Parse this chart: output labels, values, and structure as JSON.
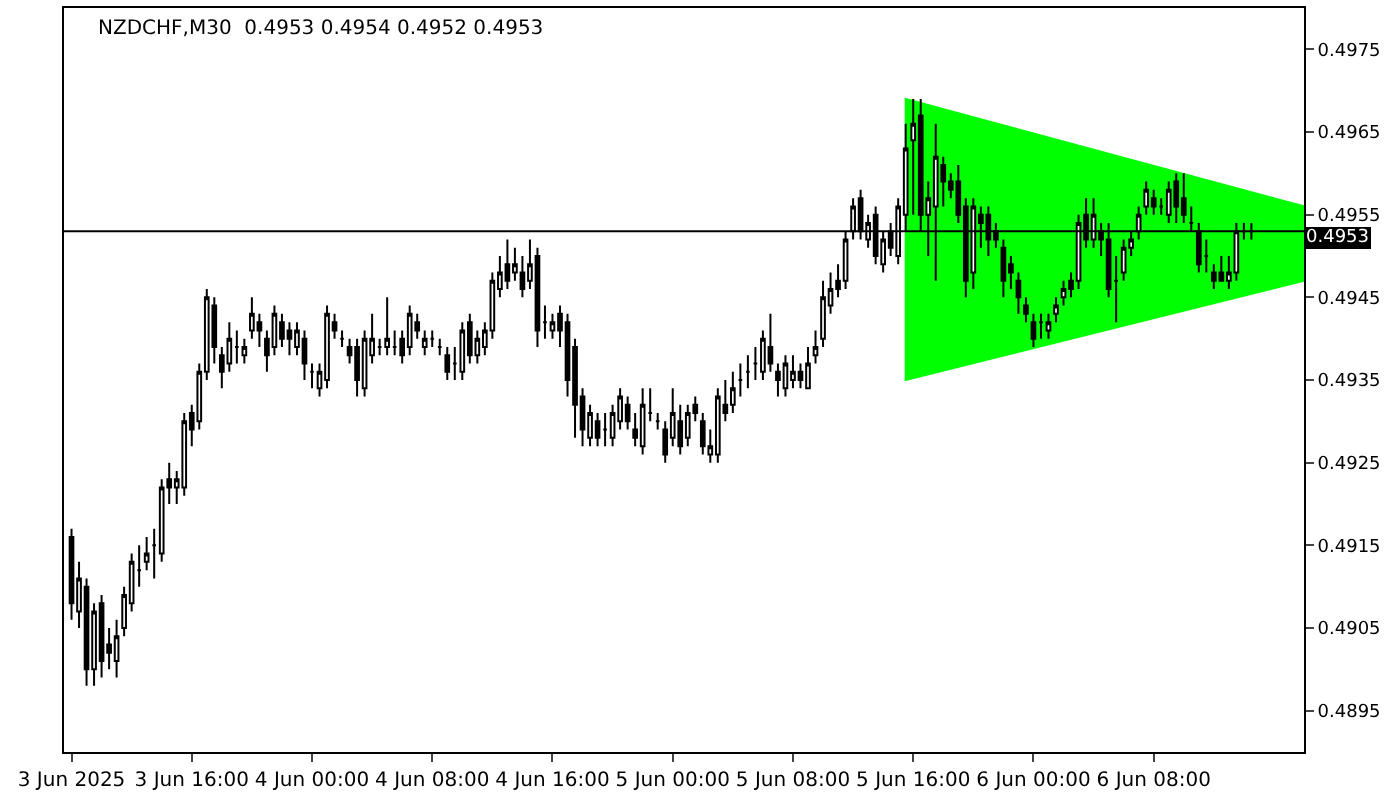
{
  "chart_data": {
    "type": "candlestick",
    "title": "NZDCHF,M30  0.4953 0.4954 0.4952 0.4953",
    "xlim": [
      "2025-06-03T07:30",
      "2025-06-06T18:00"
    ],
    "xticks": [
      {
        "value": "2025-06-03T08:00",
        "label": "3 Jun 2025"
      },
      {
        "value": "2025-06-03T16:00",
        "label": "3 Jun 16:00"
      },
      {
        "value": "2025-06-04T00:00",
        "label": "4 Jun 00:00"
      },
      {
        "value": "2025-06-04T08:00",
        "label": "4 Jun 08:00"
      },
      {
        "value": "2025-06-04T16:00",
        "label": "4 Jun 16:00"
      },
      {
        "value": "2025-06-05T00:00",
        "label": "5 Jun 00:00"
      },
      {
        "value": "2025-06-05T08:00",
        "label": "5 Jun 08:00"
      },
      {
        "value": "2025-06-05T16:00",
        "label": "5 Jun 16:00"
      },
      {
        "value": "2025-06-06T00:00",
        "label": "6 Jun 00:00"
      },
      {
        "value": "2025-06-06T08:00",
        "label": "6 Jun 08:00"
      }
    ],
    "ylim": [
      0.489,
      0.498
    ],
    "yticks": [
      0.4895,
      0.4905,
      0.4915,
      0.4925,
      0.4935,
      0.4945,
      0.4955,
      0.4965,
      0.4975
    ],
    "grid": false,
    "ref_lines": [
      {
        "axis": "y",
        "value": 0.4953,
        "label": "0.4953",
        "color": "#000000"
      }
    ],
    "series": [
      {
        "type": "area",
        "color": "#00ff00",
        "x": [
          "2025-06-05T15:30",
          "2025-06-06T18:00",
          "2025-06-06T18:00",
          "2025-06-05T15:30"
        ],
        "values": [
          0.4969,
          0.4956,
          0.4947,
          0.4935
        ]
      },
      {
        "color": "#000000",
        "x": [
          "2025-06-03T08:00",
          "2025-06-03T08:30",
          "2025-06-03T09:00",
          "2025-06-03T09:30",
          "2025-06-03T10:00",
          "2025-06-03T10:30",
          "2025-06-03T11:00",
          "2025-06-03T11:30",
          "2025-06-03T12:00",
          "2025-06-03T12:30",
          "2025-06-03T13:00",
          "2025-06-03T13:30",
          "2025-06-03T14:00",
          "2025-06-03T14:30",
          "2025-06-03T15:00",
          "2025-06-03T15:30",
          "2025-06-03T16:00",
          "2025-06-03T16:30",
          "2025-06-03T17:00",
          "2025-06-03T17:30",
          "2025-06-03T18:00",
          "2025-06-03T18:30",
          "2025-06-03T19:00",
          "2025-06-03T19:30",
          "2025-06-03T20:00",
          "2025-06-03T20:30",
          "2025-06-03T21:00",
          "2025-06-03T21:30",
          "2025-06-03T22:00",
          "2025-06-03T22:30",
          "2025-06-03T23:00",
          "2025-06-03T23:30",
          "2025-06-04T00:00",
          "2025-06-04T00:30",
          "2025-06-04T01:00",
          "2025-06-04T01:30",
          "2025-06-04T02:00",
          "2025-06-04T02:30",
          "2025-06-04T03:00",
          "2025-06-04T03:30",
          "2025-06-04T04:00",
          "2025-06-04T04:30",
          "2025-06-04T05:00",
          "2025-06-04T05:30",
          "2025-06-04T06:00",
          "2025-06-04T06:30",
          "2025-06-04T07:00",
          "2025-06-04T07:30",
          "2025-06-04T08:00",
          "2025-06-04T08:30",
          "2025-06-04T09:00",
          "2025-06-04T09:30",
          "2025-06-04T10:00",
          "2025-06-04T10:30",
          "2025-06-04T11:00",
          "2025-06-04T11:30",
          "2025-06-04T12:00",
          "2025-06-04T12:30",
          "2025-06-04T13:00",
          "2025-06-04T13:30",
          "2025-06-04T14:00",
          "2025-06-04T14:30",
          "2025-06-04T15:00",
          "2025-06-04T15:30",
          "2025-06-04T16:00",
          "2025-06-04T16:30",
          "2025-06-04T17:00",
          "2025-06-04T17:30",
          "2025-06-04T18:00",
          "2025-06-04T18:30",
          "2025-06-04T19:00",
          "2025-06-04T19:30",
          "2025-06-04T20:00",
          "2025-06-04T20:30",
          "2025-06-04T21:00",
          "2025-06-04T21:30",
          "2025-06-04T22:00",
          "2025-06-04T22:30",
          "2025-06-04T23:00",
          "2025-06-04T23:30",
          "2025-06-05T00:00",
          "2025-06-05T00:30",
          "2025-06-05T01:00",
          "2025-06-05T01:30",
          "2025-06-05T02:00",
          "2025-06-05T02:30",
          "2025-06-05T03:00",
          "2025-06-05T03:30",
          "2025-06-05T04:00",
          "2025-06-05T04:30",
          "2025-06-05T05:00",
          "2025-06-05T05:30",
          "2025-06-05T06:00",
          "2025-06-05T06:30",
          "2025-06-05T07:00",
          "2025-06-05T07:30",
          "2025-06-05T08:00",
          "2025-06-05T08:30",
          "2025-06-05T09:00",
          "2025-06-05T09:30",
          "2025-06-05T10:00",
          "2025-06-05T10:30",
          "2025-06-05T11:00",
          "2025-06-05T11:30",
          "2025-06-05T12:00",
          "2025-06-05T12:30",
          "2025-06-05T13:00",
          "2025-06-05T13:30",
          "2025-06-05T14:00",
          "2025-06-05T14:30",
          "2025-06-05T15:00",
          "2025-06-05T15:30",
          "2025-06-05T16:00",
          "2025-06-05T16:30",
          "2025-06-05T17:00",
          "2025-06-05T17:30",
          "2025-06-05T18:00",
          "2025-06-05T18:30",
          "2025-06-05T19:00",
          "2025-06-05T19:30",
          "2025-06-05T20:00",
          "2025-06-05T20:30",
          "2025-06-05T21:00",
          "2025-06-05T21:30",
          "2025-06-05T22:00",
          "2025-06-05T22:30",
          "2025-06-05T23:00",
          "2025-06-05T23:30",
          "2025-06-06T00:00",
          "2025-06-06T00:30",
          "2025-06-06T01:00",
          "2025-06-06T01:30",
          "2025-06-06T02:00",
          "2025-06-06T02:30",
          "2025-06-06T03:00",
          "2025-06-06T03:30",
          "2025-06-06T04:00",
          "2025-06-06T04:30",
          "2025-06-06T05:00",
          "2025-06-06T05:30",
          "2025-06-06T06:00",
          "2025-06-06T06:30",
          "2025-06-06T07:00",
          "2025-06-06T07:30",
          "2025-06-06T08:00",
          "2025-06-06T08:30",
          "2025-06-06T09:00",
          "2025-06-06T09:30",
          "2025-06-06T10:00",
          "2025-06-06T10:30",
          "2025-06-06T11:00",
          "2025-06-06T11:30",
          "2025-06-06T12:00",
          "2025-06-06T12:30",
          "2025-06-06T13:00",
          "2025-06-06T13:30",
          "2025-06-06T14:00",
          "2025-06-06T14:30"
        ],
        "ohlc": [
          [
            0.4916,
            0.4917,
            0.4906,
            0.4908
          ],
          [
            0.4907,
            0.4913,
            0.4905,
            0.4911
          ],
          [
            0.491,
            0.4911,
            0.4898,
            0.49
          ],
          [
            0.49,
            0.4908,
            0.4898,
            0.4907
          ],
          [
            0.4908,
            0.4909,
            0.4899,
            0.4901
          ],
          [
            0.4903,
            0.4905,
            0.49,
            0.4902
          ],
          [
            0.4901,
            0.4906,
            0.4899,
            0.4904
          ],
          [
            0.4905,
            0.491,
            0.4904,
            0.4909
          ],
          [
            0.4908,
            0.4914,
            0.4907,
            0.4913
          ],
          [
            0.4912,
            0.4915,
            0.491,
            0.4912
          ],
          [
            0.4913,
            0.4916,
            0.4912,
            0.4914
          ],
          [
            0.4915,
            0.4917,
            0.4911,
            0.4915
          ],
          [
            0.4914,
            0.4923,
            0.4913,
            0.4922
          ],
          [
            0.4923,
            0.4925,
            0.492,
            0.4922
          ],
          [
            0.4922,
            0.4924,
            0.492,
            0.4923
          ],
          [
            0.4922,
            0.4931,
            0.4921,
            0.493
          ],
          [
            0.4931,
            0.4932,
            0.4927,
            0.4929
          ],
          [
            0.493,
            0.4937,
            0.4929,
            0.4936
          ],
          [
            0.4936,
            0.4946,
            0.4935,
            0.4945
          ],
          [
            0.4944,
            0.4945,
            0.4937,
            0.4939
          ],
          [
            0.4938,
            0.4939,
            0.4934,
            0.4936
          ],
          [
            0.4937,
            0.4942,
            0.4936,
            0.494
          ],
          [
            0.4939,
            0.4941,
            0.4937,
            0.4939
          ],
          [
            0.4938,
            0.494,
            0.4937,
            0.4939
          ],
          [
            0.4941,
            0.4945,
            0.494,
            0.4943
          ],
          [
            0.4942,
            0.4943,
            0.4939,
            0.4941
          ],
          [
            0.494,
            0.4941,
            0.4936,
            0.4938
          ],
          [
            0.4939,
            0.4944,
            0.4938,
            0.4943
          ],
          [
            0.4942,
            0.4943,
            0.4939,
            0.494
          ],
          [
            0.4941,
            0.4942,
            0.4938,
            0.494
          ],
          [
            0.4939,
            0.4942,
            0.4938,
            0.4941
          ],
          [
            0.494,
            0.4941,
            0.4935,
            0.4937
          ],
          [
            0.4936,
            0.4937,
            0.4934,
            0.4936
          ],
          [
            0.4934,
            0.4937,
            0.4933,
            0.4936
          ],
          [
            0.4935,
            0.4944,
            0.4934,
            0.4943
          ],
          [
            0.4942,
            0.4943,
            0.494,
            0.4941
          ],
          [
            0.494,
            0.4941,
            0.4939,
            0.494
          ],
          [
            0.4939,
            0.494,
            0.4937,
            0.4938
          ],
          [
            0.4939,
            0.494,
            0.4933,
            0.4935
          ],
          [
            0.4934,
            0.4941,
            0.4933,
            0.494
          ],
          [
            0.4938,
            0.4943,
            0.4937,
            0.494
          ],
          [
            0.4939,
            0.494,
            0.4938,
            0.4939
          ],
          [
            0.4939,
            0.4945,
            0.4938,
            0.494
          ],
          [
            0.4939,
            0.4941,
            0.4938,
            0.4939
          ],
          [
            0.494,
            0.4941,
            0.4937,
            0.4938
          ],
          [
            0.4939,
            0.4944,
            0.4938,
            0.4943
          ],
          [
            0.4942,
            0.4943,
            0.494,
            0.4941
          ],
          [
            0.4939,
            0.4941,
            0.4938,
            0.494
          ],
          [
            0.494,
            0.4941,
            0.4939,
            0.494
          ],
          [
            0.4939,
            0.494,
            0.4938,
            0.4939
          ],
          [
            0.4938,
            0.4939,
            0.4935,
            0.4936
          ],
          [
            0.4937,
            0.4939,
            0.4935,
            0.4937
          ],
          [
            0.4936,
            0.4942,
            0.4935,
            0.4941
          ],
          [
            0.4942,
            0.4943,
            0.4937,
            0.4938
          ],
          [
            0.4938,
            0.4941,
            0.4937,
            0.494
          ],
          [
            0.4939,
            0.4942,
            0.4938,
            0.4941
          ],
          [
            0.4941,
            0.4948,
            0.494,
            0.4947
          ],
          [
            0.4946,
            0.495,
            0.4945,
            0.4948
          ],
          [
            0.4949,
            0.4952,
            0.4946,
            0.4947
          ],
          [
            0.4948,
            0.4951,
            0.4947,
            0.4949
          ],
          [
            0.4948,
            0.495,
            0.4945,
            0.4946
          ],
          [
            0.4947,
            0.4952,
            0.4946,
            0.4949
          ],
          [
            0.495,
            0.4951,
            0.4939,
            0.4941
          ],
          [
            0.4942,
            0.4944,
            0.494,
            0.4942
          ],
          [
            0.4941,
            0.4943,
            0.494,
            0.4942
          ],
          [
            0.4943,
            0.4944,
            0.4939,
            0.4941
          ],
          [
            0.4942,
            0.4943,
            0.4933,
            0.4935
          ],
          [
            0.4939,
            0.494,
            0.4928,
            0.4932
          ],
          [
            0.4933,
            0.4934,
            0.4927,
            0.4929
          ],
          [
            0.4928,
            0.4932,
            0.4927,
            0.4931
          ],
          [
            0.493,
            0.4931,
            0.4927,
            0.4928
          ],
          [
            0.4929,
            0.4931,
            0.4927,
            0.4929
          ],
          [
            0.4928,
            0.4932,
            0.4927,
            0.4931
          ],
          [
            0.493,
            0.4934,
            0.4929,
            0.4933
          ],
          [
            0.4932,
            0.4933,
            0.4929,
            0.493
          ],
          [
            0.4929,
            0.4931,
            0.4927,
            0.4928
          ],
          [
            0.4927,
            0.4934,
            0.4926,
            0.4932
          ],
          [
            0.4931,
            0.4934,
            0.493,
            0.4931
          ],
          [
            0.493,
            0.4931,
            0.4929,
            0.493
          ],
          [
            0.4929,
            0.493,
            0.4925,
            0.4926
          ],
          [
            0.4928,
            0.4934,
            0.4927,
            0.4931
          ],
          [
            0.493,
            0.4932,
            0.4926,
            0.4927
          ],
          [
            0.4928,
            0.4932,
            0.4927,
            0.4931
          ],
          [
            0.4932,
            0.4933,
            0.493,
            0.4931
          ],
          [
            0.493,
            0.4931,
            0.4926,
            0.4927
          ],
          [
            0.4926,
            0.4929,
            0.4925,
            0.4927
          ],
          [
            0.4926,
            0.4934,
            0.4925,
            0.4933
          ],
          [
            0.4932,
            0.4935,
            0.493,
            0.4931
          ],
          [
            0.4932,
            0.4936,
            0.4931,
            0.4934
          ],
          [
            0.4935,
            0.4937,
            0.4933,
            0.4935
          ],
          [
            0.4936,
            0.4938,
            0.4934,
            0.4936
          ],
          [
            0.4937,
            0.4939,
            0.4935,
            0.4937
          ],
          [
            0.4936,
            0.4941,
            0.4935,
            0.494
          ],
          [
            0.4939,
            0.4943,
            0.4936,
            0.4937
          ],
          [
            0.4936,
            0.4937,
            0.4933,
            0.4935
          ],
          [
            0.4934,
            0.4938,
            0.4933,
            0.4937
          ],
          [
            0.4935,
            0.4938,
            0.4934,
            0.4936
          ],
          [
            0.4936,
            0.4937,
            0.4934,
            0.4935
          ],
          [
            0.4934,
            0.4939,
            0.4934,
            0.4937
          ],
          [
            0.4938,
            0.4941,
            0.4937,
            0.4939
          ],
          [
            0.494,
            0.4947,
            0.4939,
            0.4945
          ],
          [
            0.4944,
            0.4948,
            0.4943,
            0.4946
          ],
          [
            0.4947,
            0.4949,
            0.4945,
            0.4946
          ],
          [
            0.4947,
            0.4953,
            0.4946,
            0.4952
          ],
          [
            0.4953,
            0.4957,
            0.4952,
            0.4956
          ],
          [
            0.4957,
            0.4958,
            0.4952,
            0.4953
          ],
          [
            0.4952,
            0.4955,
            0.4951,
            0.4954
          ],
          [
            0.4955,
            0.4956,
            0.4949,
            0.495
          ],
          [
            0.4949,
            0.4953,
            0.4948,
            0.4952
          ],
          [
            0.4953,
            0.4954,
            0.495,
            0.4951
          ],
          [
            0.495,
            0.4957,
            0.4949,
            0.4956
          ],
          [
            0.4955,
            0.4966,
            0.4953,
            0.4963
          ],
          [
            0.4964,
            0.4969,
            0.4955,
            0.4966
          ],
          [
            0.4967,
            0.4969,
            0.4953,
            0.4955
          ],
          [
            0.4955,
            0.4959,
            0.495,
            0.4957
          ],
          [
            0.4956,
            0.4966,
            0.4947,
            0.4962
          ],
          [
            0.4961,
            0.4962,
            0.4956,
            0.4959
          ],
          [
            0.4959,
            0.496,
            0.4957,
            0.4958
          ],
          [
            0.4959,
            0.4961,
            0.4954,
            0.4955
          ],
          [
            0.4956,
            0.4957,
            0.4945,
            0.4947
          ],
          [
            0.4948,
            0.4957,
            0.4946,
            0.4956
          ],
          [
            0.4955,
            0.4956,
            0.4951,
            0.4954
          ],
          [
            0.4955,
            0.4956,
            0.495,
            0.4952
          ],
          [
            0.4953,
            0.4954,
            0.4951,
            0.4952
          ],
          [
            0.4951,
            0.4952,
            0.4945,
            0.4947
          ],
          [
            0.4949,
            0.495,
            0.4946,
            0.4948
          ],
          [
            0.4947,
            0.4948,
            0.4943,
            0.4945
          ],
          [
            0.4944,
            0.4945,
            0.4942,
            0.4943
          ],
          [
            0.4942,
            0.4943,
            0.4939,
            0.494
          ],
          [
            0.4942,
            0.4943,
            0.494,
            0.4942
          ],
          [
            0.4941,
            0.4943,
            0.494,
            0.4942
          ],
          [
            0.4943,
            0.4945,
            0.4942,
            0.4944
          ],
          [
            0.4945,
            0.4947,
            0.4944,
            0.4946
          ],
          [
            0.4947,
            0.4948,
            0.4945,
            0.4946
          ],
          [
            0.4947,
            0.4955,
            0.4946,
            0.4954
          ],
          [
            0.4955,
            0.4957,
            0.4951,
            0.4952
          ],
          [
            0.4952,
            0.4957,
            0.4951,
            0.4955
          ],
          [
            0.4953,
            0.4954,
            0.495,
            0.4952
          ],
          [
            0.4952,
            0.4954,
            0.4945,
            0.4946
          ],
          [
            0.4947,
            0.495,
            0.4942,
            0.4947
          ],
          [
            0.4948,
            0.4952,
            0.4947,
            0.4951
          ],
          [
            0.4951,
            0.4953,
            0.495,
            0.4952
          ],
          [
            0.4953,
            0.4956,
            0.4952,
            0.4955
          ],
          [
            0.4956,
            0.4959,
            0.4955,
            0.4958
          ],
          [
            0.4957,
            0.4958,
            0.4955,
            0.4956
          ],
          [
            0.4956,
            0.4957,
            0.4955,
            0.4956
          ],
          [
            0.4955,
            0.4959,
            0.4954,
            0.4958
          ],
          [
            0.4959,
            0.496,
            0.4954,
            0.4956
          ],
          [
            0.4957,
            0.496,
            0.4954,
            0.4955
          ],
          [
            0.4954,
            0.4956,
            0.4953,
            0.4954
          ],
          [
            0.4953,
            0.4954,
            0.4948,
            0.4949
          ],
          [
            0.495,
            0.4952,
            0.4948,
            0.495
          ],
          [
            0.4948,
            0.4949,
            0.4946,
            0.4947
          ],
          [
            0.4948,
            0.495,
            0.4947,
            0.4947
          ],
          [
            0.4947,
            0.495,
            0.4946,
            0.4948
          ],
          [
            0.4948,
            0.4954,
            0.4947,
            0.4953
          ],
          [
            0.4953,
            0.4954,
            0.4952,
            0.4953
          ],
          [
            0.4953,
            0.4954,
            0.4952,
            0.4953
          ]
        ]
      }
    ]
  }
}
